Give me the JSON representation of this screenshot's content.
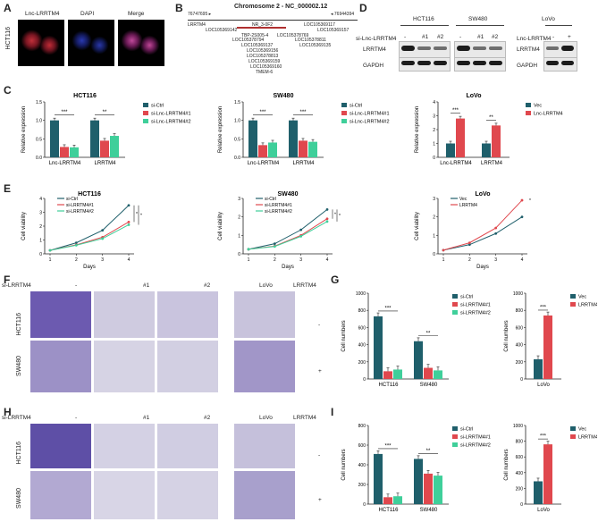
{
  "panels": {
    "A": "A",
    "B": "B",
    "C": "C",
    "D": "D",
    "E": "E",
    "F": "F",
    "G": "G",
    "H": "H",
    "I": "I"
  },
  "panelA": {
    "labels": [
      "Lnc-LRRTM4",
      "DAPI",
      "Merge"
    ],
    "row": "HCT116"
  },
  "panelB": {
    "title": "Chromosome 2 - NC_000002.12",
    "left_coord": "76747695 ▸",
    "right_coord": "◂ 76944394",
    "genes": [
      "LRRTM4",
      "LOC105369142",
      "NR_3-0F2",
      "LOC105369117",
      "LOC105369157",
      "TBP-2S005-4",
      "LOC105378794",
      "LOC105378769",
      "LOC105378811",
      "LOC105369137",
      "LOC105369135",
      "LOC105369156",
      "LOC105378813",
      "LOC105369159",
      "LOC105369160",
      "TMEM-6"
    ]
  },
  "panelD": {
    "si_label": "si-Lnc-LRRTM4",
    "lnc_label": "Lnc-LRRTM4",
    "groups": [
      {
        "name": "HCT116",
        "lanes": [
          "-",
          "#1",
          "#2"
        ]
      },
      {
        "name": "SW480",
        "lanes": [
          "-",
          "#1",
          "#2"
        ]
      },
      {
        "name": "LoVo",
        "lanes": [
          "-",
          "+"
        ]
      }
    ],
    "rows": [
      "LRRTM4",
      "GAPDH"
    ]
  },
  "panelF": {
    "si_label": "si-LRRTM4",
    "cols": [
      "-",
      "#1",
      "#2"
    ],
    "lovo": "LoVo",
    "lrrtm4": "LRRTM4",
    "rows": [
      "HCT116",
      "SW480"
    ],
    "signs": [
      "-",
      "+"
    ]
  },
  "panelH": {
    "si_label": "si-LRRTM4",
    "cols": [
      "-",
      "#1",
      "#2"
    ],
    "lovo": "LoVo",
    "lrrtm4": "LRRTM4",
    "rows": [
      "HCT116",
      "SW480"
    ],
    "signs": [
      "-",
      "+"
    ]
  },
  "chart_data": [
    {
      "id": "C1",
      "type": "bar",
      "title": "HCT116",
      "ylabel": "Relative expression",
      "ylim": [
        0,
        1.5
      ],
      "yticks": [
        "0.0",
        "0.5",
        "1.0",
        "1.5"
      ],
      "categories": [
        "Lnc-LRRTM4",
        "LRRTM4"
      ],
      "series": [
        {
          "name": "si-Ctrl",
          "color": "#1f5f6b",
          "values": [
            1.0,
            1.0
          ]
        },
        {
          "name": "si-Lnc-LRRTM4#1",
          "color": "#e0484e",
          "values": [
            0.28,
            0.45
          ]
        },
        {
          "name": "si-Lnc-LRRTM4#2",
          "color": "#3fcf9a",
          "values": [
            0.27,
            0.58
          ]
        }
      ],
      "sig": [
        "***",
        "**"
      ]
    },
    {
      "id": "C2",
      "type": "bar",
      "title": "SW480",
      "ylabel": "Relative expression",
      "ylim": [
        0,
        1.5
      ],
      "yticks": [
        "0.0",
        "0.5",
        "1.0",
        "1.5"
      ],
      "categories": [
        "Lnc-LRRTM4",
        "LRRTM4"
      ],
      "series": [
        {
          "name": "si-Ctrl",
          "color": "#1f5f6b",
          "values": [
            1.0,
            1.0
          ]
        },
        {
          "name": "si-Lnc-LRRTM4#1",
          "color": "#e0484e",
          "values": [
            0.33,
            0.45
          ]
        },
        {
          "name": "si-Lnc-LRRTM4#2",
          "color": "#3fcf9a",
          "values": [
            0.4,
            0.42
          ]
        }
      ],
      "sig": [
        "***",
        "***"
      ]
    },
    {
      "id": "C3",
      "type": "bar",
      "title": "LoVo",
      "ylabel": "Relative expression",
      "ylim": [
        0,
        4
      ],
      "yticks": [
        "0",
        "1",
        "2",
        "3",
        "4"
      ],
      "categories": [
        "Lnc-LRRTM4",
        "LRRTM4"
      ],
      "series": [
        {
          "name": "Vec",
          "color": "#1f5f6b",
          "values": [
            1.0,
            1.0
          ]
        },
        {
          "name": "Lnc-LRRTM4",
          "color": "#e0484e",
          "values": [
            2.8,
            2.3
          ]
        }
      ],
      "sig": [
        "***",
        "**"
      ]
    },
    {
      "id": "E1",
      "type": "line",
      "title": "HCT116",
      "xlabel": "Days",
      "ylabel": "Cell viability",
      "ylim": [
        0,
        4
      ],
      "yticks": [
        "0",
        "1",
        "2",
        "3",
        "4"
      ],
      "x": [
        1,
        2,
        3,
        4
      ],
      "series": [
        {
          "name": "si-Ctrl",
          "color": "#1f5f6b",
          "values": [
            0.25,
            0.8,
            1.7,
            3.5
          ]
        },
        {
          "name": "si-LRRTM4#1",
          "color": "#e0484e",
          "values": [
            0.25,
            0.65,
            1.2,
            2.3
          ]
        },
        {
          "name": "si-LRRTM4#2",
          "color": "#3fcf9a",
          "values": [
            0.25,
            0.62,
            1.1,
            2.1
          ]
        }
      ],
      "sig": [
        "*",
        "*"
      ]
    },
    {
      "id": "E2",
      "type": "line",
      "title": "SW480",
      "xlabel": "Days",
      "ylabel": "Cell viability",
      "ylim": [
        0,
        3
      ],
      "yticks": [
        "0",
        "1",
        "2",
        "3"
      ],
      "x": [
        1,
        2,
        3,
        4
      ],
      "series": [
        {
          "name": "si-Ctrl",
          "color": "#1f5f6b",
          "values": [
            0.25,
            0.55,
            1.3,
            2.4
          ]
        },
        {
          "name": "si-LRRTM4#1",
          "color": "#e0484e",
          "values": [
            0.25,
            0.42,
            1.0,
            1.9
          ]
        },
        {
          "name": "si-LRRTM4#2",
          "color": "#3fcf9a",
          "values": [
            0.25,
            0.4,
            0.95,
            1.75
          ]
        }
      ],
      "sig": [
        "*",
        "*"
      ]
    },
    {
      "id": "E3",
      "type": "line",
      "title": "LoVo",
      "xlabel": "Days",
      "ylabel": "Cell viability",
      "ylim": [
        0,
        3
      ],
      "yticks": [
        "0",
        "1",
        "2",
        "3"
      ],
      "x": [
        1,
        2,
        3,
        4
      ],
      "series": [
        {
          "name": "Vec",
          "color": "#1f5f6b",
          "values": [
            0.2,
            0.5,
            1.1,
            2.0
          ]
        },
        {
          "name": "LRRTM4",
          "color": "#e0484e",
          "values": [
            0.2,
            0.6,
            1.4,
            2.9
          ]
        }
      ],
      "sig": [
        "*"
      ]
    },
    {
      "id": "G1",
      "type": "bar",
      "ylabel": "Cell numbers",
      "ylim": [
        0,
        1000
      ],
      "yticks": [
        "0",
        "200",
        "400",
        "600",
        "800",
        "1000"
      ],
      "categories": [
        "HCT116",
        "SW480"
      ],
      "series": [
        {
          "name": "si-Ctrl",
          "color": "#1f5f6b",
          "values": [
            730,
            440
          ]
        },
        {
          "name": "si-LRRTM4#1",
          "color": "#e0484e",
          "values": [
            90,
            130
          ]
        },
        {
          "name": "si-LRRTM4#2",
          "color": "#3fcf9a",
          "values": [
            110,
            100
          ]
        }
      ],
      "sig": [
        "***",
        "**"
      ]
    },
    {
      "id": "G2",
      "type": "bar",
      "ylabel": "Cell numbers",
      "ylim": [
        0,
        1000
      ],
      "yticks": [
        "0",
        "200",
        "400",
        "600",
        "800",
        "1000"
      ],
      "categories": [
        "LoVo"
      ],
      "series": [
        {
          "name": "Vec",
          "color": "#1f5f6b",
          "values": [
            230
          ]
        },
        {
          "name": "LRRTM4",
          "color": "#e0484e",
          "values": [
            740
          ]
        }
      ],
      "sig": [
        "***"
      ]
    },
    {
      "id": "I1",
      "type": "bar",
      "ylabel": "Cell numbers",
      "ylim": [
        0,
        800
      ],
      "yticks": [
        "0",
        "200",
        "400",
        "600",
        "800"
      ],
      "categories": [
        "HCT116",
        "SW480"
      ],
      "series": [
        {
          "name": "si-Ctrl",
          "color": "#1f5f6b",
          "values": [
            510,
            460
          ]
        },
        {
          "name": "si-LRRTM4#1",
          "color": "#e0484e",
          "values": [
            70,
            310
          ]
        },
        {
          "name": "si-LRRTM4#2",
          "color": "#3fcf9a",
          "values": [
            80,
            290
          ]
        }
      ],
      "sig": [
        "***",
        "**"
      ]
    },
    {
      "id": "I2",
      "type": "bar",
      "ylabel": "Cell numbers",
      "ylim": [
        0,
        1000
      ],
      "yticks": [
        "0",
        "200",
        "400",
        "600",
        "800",
        "1000"
      ],
      "categories": [
        "LoVo"
      ],
      "series": [
        {
          "name": "Vec",
          "color": "#1f5f6b",
          "values": [
            290
          ]
        },
        {
          "name": "LRRTM4",
          "color": "#e0484e",
          "values": [
            760
          ]
        }
      ],
      "sig": [
        "***"
      ]
    }
  ]
}
